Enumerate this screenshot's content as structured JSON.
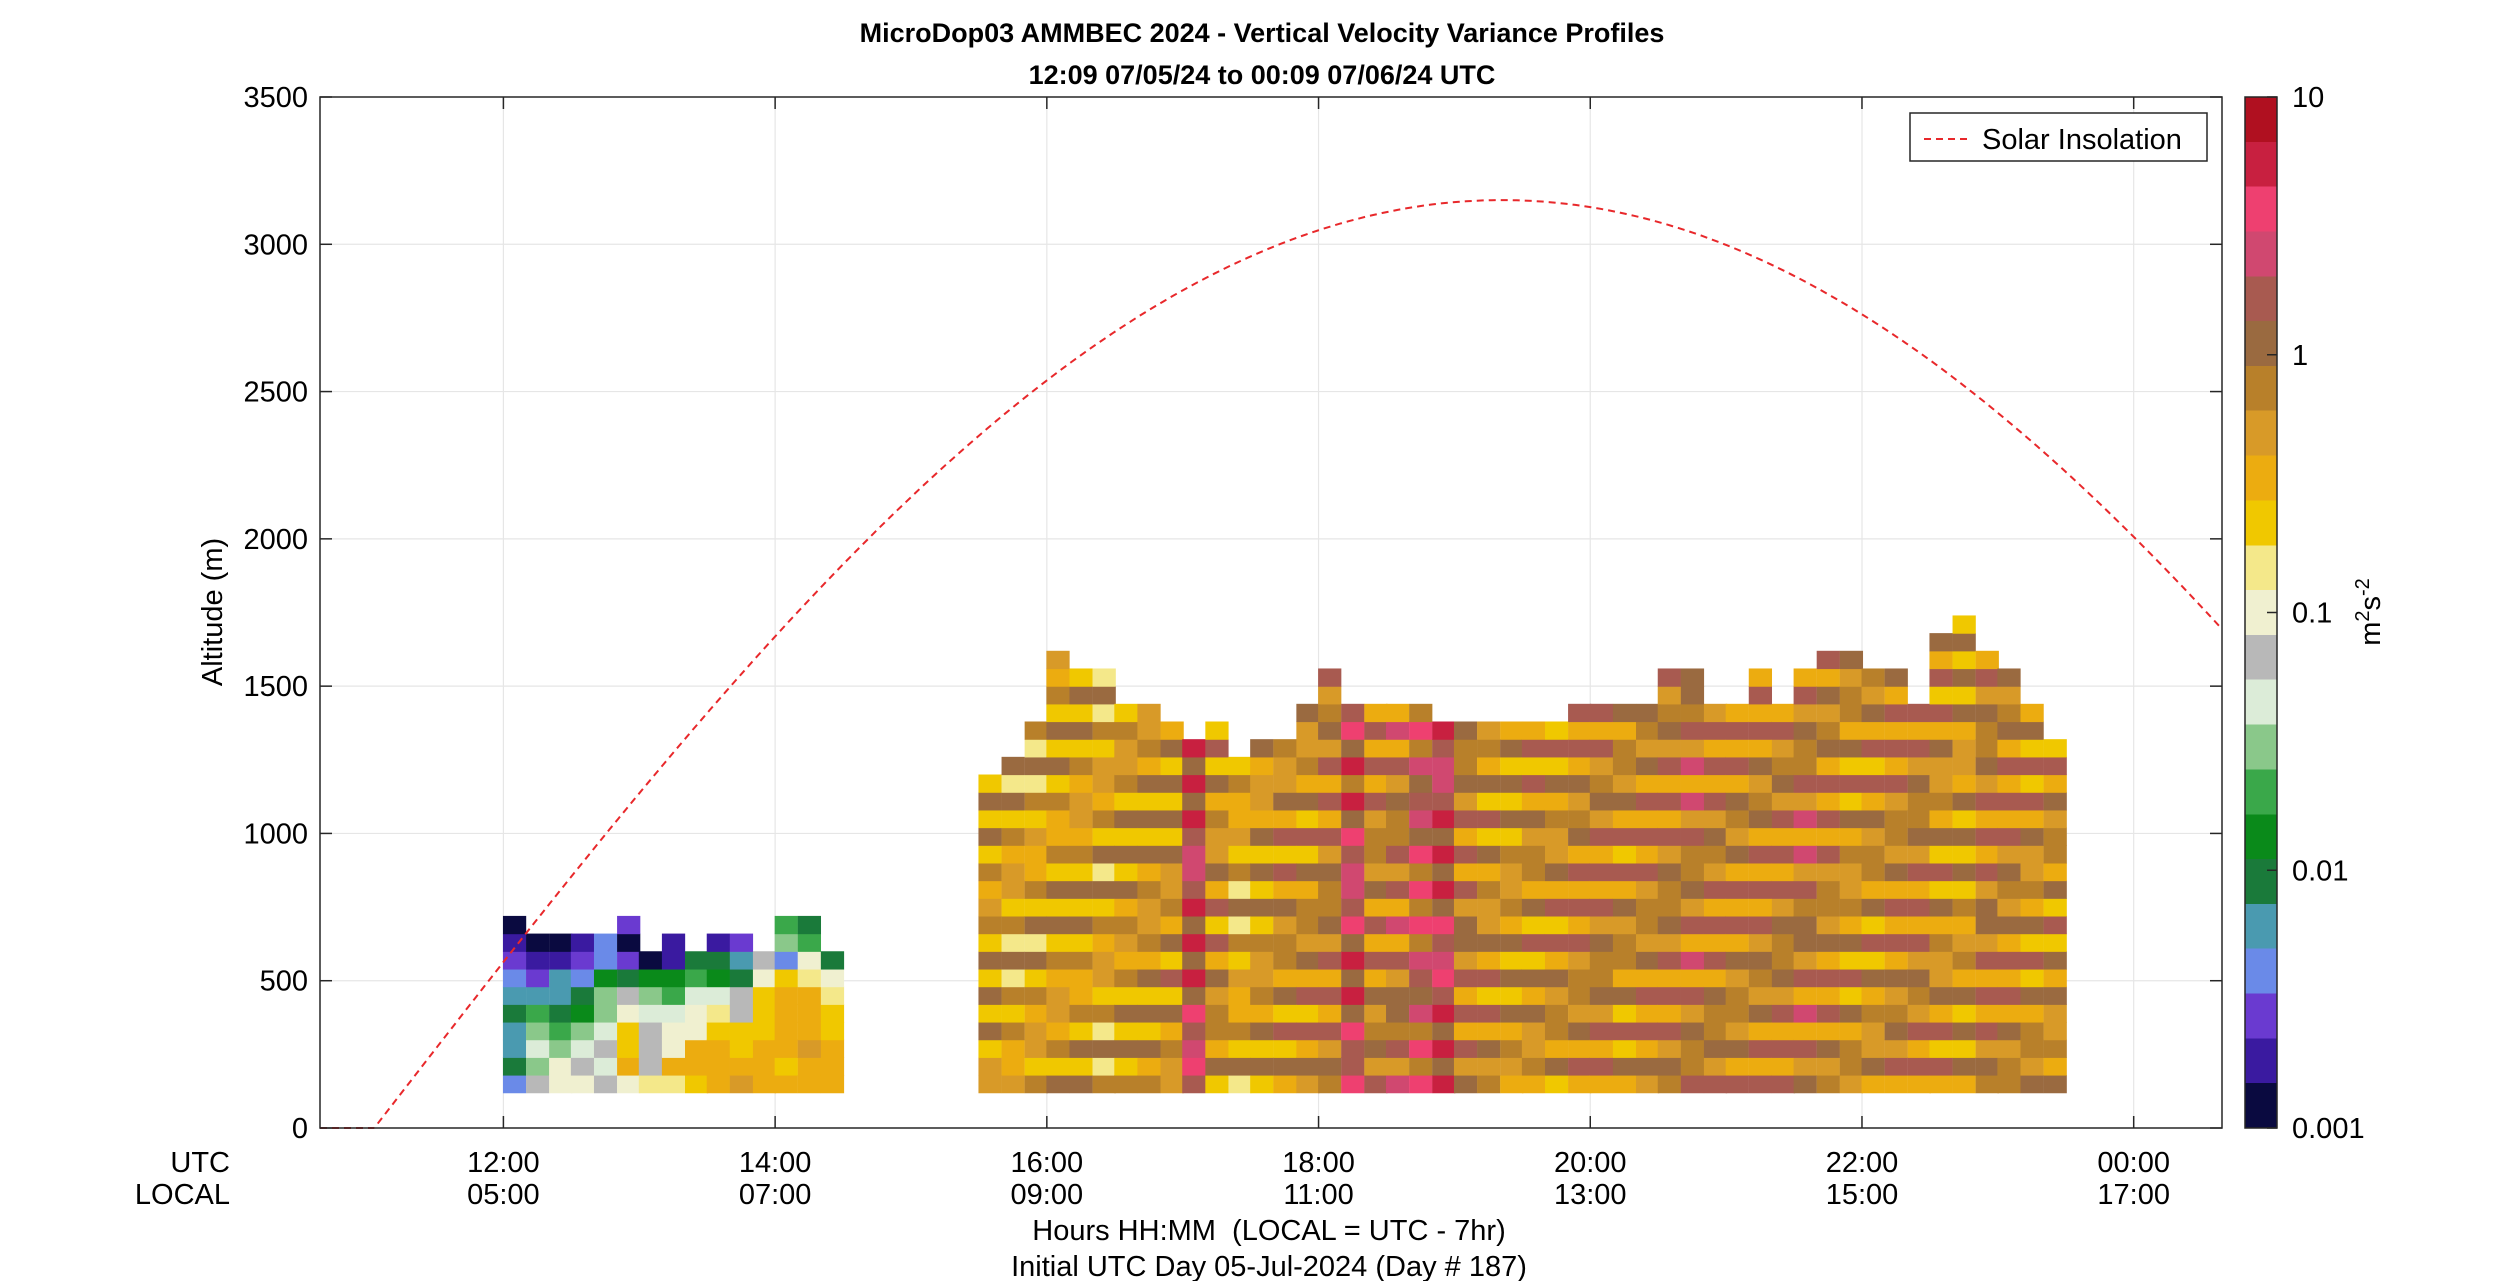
{
  "chart_data": {
    "type": "heatmap",
    "title": "MicroDop03 AMMBEC 2024 - Vertical Velocity Variance Profiles",
    "subtitle": "12:09 07/05/24 to 00:09 07/06/24  UTC",
    "ylabel": "Altitude (m)",
    "xlabel": "Hours HH:MM  (LOCAL = UTC - 7hr)",
    "xlabel2": "Initial UTC Day 05-Jul-2024 (Day # 187)",
    "x_row_label_utc": "UTC",
    "x_row_label_local": "LOCAL",
    "x_range_hours_utc": [
      10.65,
      24.65
    ],
    "y_range_m": [
      0,
      3500
    ],
    "y_ticks": [
      0,
      500,
      1000,
      1500,
      2000,
      2500,
      3000,
      3500
    ],
    "y_tick_labels": [
      "0",
      "500",
      "1000",
      "1500",
      "2000",
      "2500",
      "3000",
      "3500"
    ],
    "x_ticks": [
      {
        "hour": 12,
        "utc": "12:00",
        "local": "05:00"
      },
      {
        "hour": 14,
        "utc": "14:00",
        "local": "07:00"
      },
      {
        "hour": 16,
        "utc": "16:00",
        "local": "09:00"
      },
      {
        "hour": 18,
        "utc": "18:00",
        "local": "11:00"
      },
      {
        "hour": 20,
        "utc": "20:00",
        "local": "13:00"
      },
      {
        "hour": 22,
        "utc": "22:00",
        "local": "15:00"
      },
      {
        "hour": 24,
        "utc": "00:00",
        "local": "17:00"
      }
    ],
    "grid": true,
    "legend": {
      "position": "top-right",
      "entries": [
        {
          "name": "Solar Insolation",
          "style": "dashed",
          "color": "#e8282b"
        }
      ]
    },
    "colorbar": {
      "scale": "log",
      "range": [
        0.001,
        10
      ],
      "ticks": [
        0.001,
        0.01,
        0.1,
        1,
        10
      ],
      "tick_labels": [
        "0.001",
        "0.01",
        "0.1",
        "1",
        "10"
      ],
      "label_base": "m",
      "label_sup1": "2",
      "label_mid": "s",
      "label_sup2": "-2",
      "colors": [
        "#0a0a40",
        "#3a1aa0",
        "#6a3ad0",
        "#6a8ae8",
        "#4a9ab0",
        "#1a7a3a",
        "#0a8a1a",
        "#3aa84a",
        "#8ac88a",
        "#dcecd8",
        "#b8b8b8",
        "#f0f0d0",
        "#f4e88a",
        "#f0c800",
        "#ecac10",
        "#d89a28",
        "#b8802a",
        "#9a6a40",
        "#a85a50",
        "#d04870",
        "#ee4070",
        "#c82040",
        "#b01020"
      ]
    },
    "column_width_hours": 0.1667,
    "row_height_m": 60,
    "profiles": [
      {
        "t": 12.08,
        "z0": 120,
        "v": [
          0.004,
          0.009,
          0.006,
          0.006,
          0.008,
          0.006,
          0.004,
          0.0025,
          0.0015,
          0.001
        ]
      },
      {
        "t": 12.25,
        "z0": 120,
        "v": [
          0.06,
          0.025,
          0.04,
          0.035,
          0.018,
          0.006,
          0.003,
          0.0015,
          0.0013
        ]
      },
      {
        "t": 12.42,
        "z0": 120,
        "v": [
          0.1,
          0.11,
          0.03,
          0.02,
          0.008,
          0.007,
          0.006,
          0.0015,
          0.0012
        ]
      },
      {
        "t": 12.58,
        "z0": 120,
        "v": [
          0.09,
          0.075,
          0.05,
          0.035,
          0.015,
          0.008,
          0.0035,
          0.003,
          0.0018
        ]
      },
      {
        "t": 12.75,
        "z0": 120,
        "v": [
          0.08,
          0.05,
          0.06,
          0.045,
          0.03,
          0.025,
          0.012,
          0.004,
          0.0035
        ]
      },
      {
        "t": 12.92,
        "z0": 120,
        "v": [
          0.12,
          0.4,
          0.2,
          0.2,
          0.1,
          0.06,
          0.01,
          0.003,
          0.001,
          0.0025
        ]
      },
      {
        "t": 13.08,
        "z0": 120,
        "v": [
          0.15,
          0.08,
          0.07,
          0.08,
          0.04,
          0.03,
          0.015,
          0.001
        ]
      },
      {
        "t": 13.25,
        "z0": 120,
        "v": [
          0.15,
          0.3,
          0.1,
          0.09,
          0.05,
          0.02,
          0.015,
          0.0015,
          0.002
        ]
      },
      {
        "t": 13.42,
        "z0": 120,
        "v": [
          0.2,
          0.3,
          0.3,
          0.12,
          0.1,
          0.05,
          0.02,
          0.01
        ]
      },
      {
        "t": 13.58,
        "z0": 120,
        "v": [
          0.4,
          0.35,
          0.3,
          0.2,
          0.15,
          0.04,
          0.012,
          0.009,
          0.002
        ]
      },
      {
        "t": 13.75,
        "z0": 120,
        "v": [
          0.5,
          0.3,
          0.2,
          0.25,
          0.06,
          0.06,
          0.01,
          0.006,
          0.003
        ]
      },
      {
        "t": 13.92,
        "z0": 120,
        "v": [
          0.35,
          0.4,
          0.3,
          0.25,
          0.2,
          0.25,
          0.1,
          0.06
        ]
      },
      {
        "t": 14.08,
        "z0": 120,
        "v": [
          0.3,
          0.25,
          0.4,
          0.35,
          0.3,
          0.3,
          0.2,
          0.004,
          0.035,
          0.02
        ]
      },
      {
        "t": 14.25,
        "z0": 120,
        "v": [
          0.3,
          0.4,
          0.5,
          0.4,
          0.35,
          0.3,
          0.18,
          0.12,
          0.02,
          0.008
        ]
      },
      {
        "t": 14.42,
        "z0": 120,
        "v": [
          0.3,
          0.35,
          0.4,
          0.2,
          0.2,
          0.15,
          0.11,
          0.01
        ]
      }
    ],
    "bulk_profiles": [
      {
        "t": 15.58,
        "top": 1200,
        "level": 0.45
      },
      {
        "t": 15.75,
        "top": 1250,
        "level": 0.4
      },
      {
        "t": 15.92,
        "top": 1360,
        "level": 0.4
      },
      {
        "t": 16.08,
        "top": 1640,
        "level": 0.45
      },
      {
        "t": 16.25,
        "top": 1560,
        "level": 0.45
      },
      {
        "t": 16.42,
        "top": 1560,
        "level": 0.4
      },
      {
        "t": 16.58,
        "top": 1460,
        "level": 0.5
      },
      {
        "t": 16.75,
        "top": 1460,
        "level": 0.55
      },
      {
        "t": 16.92,
        "top": 1360,
        "level": 0.55
      },
      {
        "t": 17.08,
        "top": 1300,
        "level": 2.5
      },
      {
        "t": 17.25,
        "top": 1390,
        "level": 0.6
      },
      {
        "t": 17.42,
        "top": 1260,
        "level": 0.4
      },
      {
        "t": 17.58,
        "top": 1330,
        "level": 0.5
      },
      {
        "t": 17.75,
        "top": 1330,
        "level": 0.6
      },
      {
        "t": 17.92,
        "top": 1460,
        "level": 0.6
      },
      {
        "t": 18.08,
        "top": 1530,
        "level": 0.8
      },
      {
        "t": 18.25,
        "top": 1460,
        "level": 2.2
      },
      {
        "t": 18.42,
        "top": 1460,
        "level": 0.7
      },
      {
        "t": 18.58,
        "top": 1460,
        "level": 0.9
      },
      {
        "t": 18.75,
        "top": 1460,
        "level": 1.6
      },
      {
        "t": 18.92,
        "top": 1390,
        "level": 2.5
      },
      {
        "t": 19.08,
        "top": 1390,
        "level": 0.8
      },
      {
        "t": 19.25,
        "top": 1390,
        "level": 0.6
      },
      {
        "t": 19.42,
        "top": 1390,
        "level": 0.5
      },
      {
        "t": 19.58,
        "top": 1390,
        "level": 0.6
      },
      {
        "t": 19.75,
        "top": 1390,
        "level": 0.6
      },
      {
        "t": 19.92,
        "top": 1460,
        "level": 0.7
      },
      {
        "t": 20.08,
        "top": 1460,
        "level": 0.8
      },
      {
        "t": 20.25,
        "top": 1460,
        "level": 0.6
      },
      {
        "t": 20.42,
        "top": 1460,
        "level": 0.7
      },
      {
        "t": 20.58,
        "top": 1530,
        "level": 0.8
      },
      {
        "t": 20.75,
        "top": 1530,
        "level": 0.9
      },
      {
        "t": 20.92,
        "top": 1460,
        "level": 0.8
      },
      {
        "t": 21.08,
        "top": 1460,
        "level": 0.7
      },
      {
        "t": 21.25,
        "top": 1530,
        "level": 0.7
      },
      {
        "t": 21.42,
        "top": 1460,
        "level": 0.8
      },
      {
        "t": 21.58,
        "top": 1530,
        "level": 0.9
      },
      {
        "t": 21.75,
        "top": 1600,
        "level": 0.7
      },
      {
        "t": 21.92,
        "top": 1600,
        "level": 0.6
      },
      {
        "t": 22.08,
        "top": 1530,
        "level": 0.6
      },
      {
        "t": 22.25,
        "top": 1530,
        "level": 0.7
      },
      {
        "t": 22.42,
        "top": 1460,
        "level": 0.8
      },
      {
        "t": 22.58,
        "top": 1660,
        "level": 0.6
      },
      {
        "t": 22.75,
        "top": 1730,
        "level": 0.5
      },
      {
        "t": 22.92,
        "top": 1590,
        "level": 0.8
      },
      {
        "t": 23.08,
        "top": 1530,
        "level": 0.7
      },
      {
        "t": 23.25,
        "top": 1460,
        "level": 0.6
      },
      {
        "t": 23.42,
        "top": 1330,
        "level": 0.6
      }
    ],
    "solar_insolation": {
      "start_hour": 11.05,
      "end_hour": 27.65,
      "peak_hour": 19.35,
      "peak_altitude_m": 3150
    }
  }
}
